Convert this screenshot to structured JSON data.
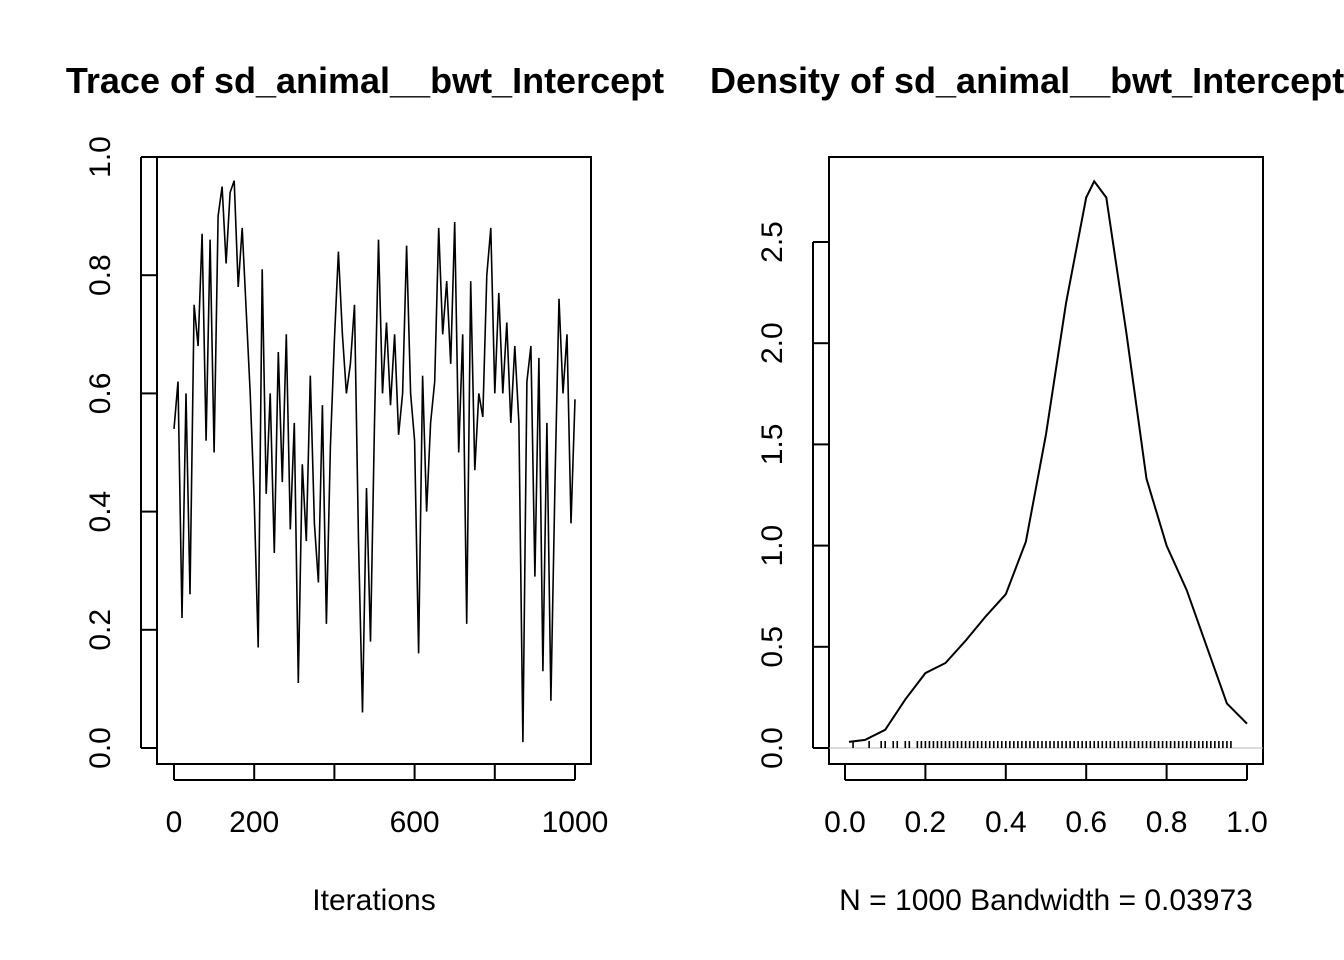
{
  "chart_data": [
    {
      "type": "line",
      "title": "Trace of sd_animal__bwt_Intercept",
      "xlabel": "Iterations",
      "ylabel": "",
      "xlim": [
        0,
        1000
      ],
      "ylim": [
        0.0,
        1.0
      ],
      "x_ticks": [
        "0",
        "200",
        "600",
        "1000"
      ],
      "x_tick_values": [
        0,
        200,
        400,
        600,
        800,
        1000
      ],
      "y_ticks": [
        "0.0",
        "0.2",
        "0.4",
        "0.6",
        "0.8",
        "1.0"
      ],
      "grid": false,
      "series": [
        {
          "x": [
            0,
            10,
            20,
            30,
            40,
            50,
            60,
            70,
            80,
            90,
            100,
            110,
            120,
            130,
            140,
            150,
            160,
            170,
            180,
            190,
            200,
            210,
            220,
            230,
            240,
            250,
            260,
            270,
            280,
            290,
            300,
            310,
            320,
            330,
            340,
            350,
            360,
            370,
            380,
            390,
            400,
            410,
            420,
            430,
            440,
            450,
            460,
            470,
            480,
            490,
            500,
            510,
            520,
            530,
            540,
            550,
            560,
            570,
            580,
            590,
            600,
            610,
            620,
            630,
            640,
            650,
            660,
            670,
            680,
            690,
            700,
            710,
            720,
            730,
            740,
            750,
            760,
            770,
            780,
            790,
            800,
            810,
            820,
            830,
            840,
            850,
            860,
            870,
            880,
            890,
            900,
            910,
            920,
            930,
            940,
            950,
            960,
            970,
            980,
            990,
            1000
          ],
          "values": [
            0.54,
            0.62,
            0.22,
            0.6,
            0.26,
            0.75,
            0.68,
            0.87,
            0.52,
            0.86,
            0.5,
            0.9,
            0.95,
            0.82,
            0.94,
            0.96,
            0.78,
            0.88,
            0.74,
            0.6,
            0.42,
            0.17,
            0.81,
            0.43,
            0.6,
            0.33,
            0.67,
            0.45,
            0.7,
            0.37,
            0.55,
            0.11,
            0.48,
            0.35,
            0.63,
            0.38,
            0.28,
            0.58,
            0.21,
            0.51,
            0.69,
            0.84,
            0.7,
            0.6,
            0.65,
            0.75,
            0.35,
            0.06,
            0.44,
            0.18,
            0.55,
            0.86,
            0.6,
            0.72,
            0.58,
            0.7,
            0.53,
            0.6,
            0.85,
            0.6,
            0.52,
            0.16,
            0.63,
            0.4,
            0.55,
            0.62,
            0.88,
            0.7,
            0.79,
            0.65,
            0.89,
            0.5,
            0.7,
            0.21,
            0.79,
            0.47,
            0.6,
            0.56,
            0.8,
            0.88,
            0.6,
            0.77,
            0.6,
            0.72,
            0.55,
            0.68,
            0.55,
            0.01,
            0.62,
            0.68,
            0.29,
            0.66,
            0.13,
            0.55,
            0.08,
            0.45,
            0.76,
            0.6,
            0.7,
            0.38,
            0.59
          ]
        }
      ]
    },
    {
      "type": "line",
      "title": "Density of sd_animal__bwt_Intercept",
      "xlabel": "N = 1000   Bandwidth = 0.03973",
      "ylabel": "",
      "xlim": [
        0.0,
        1.0
      ],
      "ylim": [
        0.0,
        2.8
      ],
      "x_ticks": [
        "0.0",
        "0.2",
        "0.4",
        "0.6",
        "0.8",
        "1.0"
      ],
      "y_ticks": [
        "0.0",
        "0.5",
        "1.0",
        "1.5",
        "2.0",
        "2.5"
      ],
      "grid": false,
      "series": [
        {
          "x": [
            0.01,
            0.05,
            0.1,
            0.15,
            0.2,
            0.25,
            0.3,
            0.35,
            0.4,
            0.45,
            0.5,
            0.55,
            0.6,
            0.62,
            0.65,
            0.7,
            0.75,
            0.8,
            0.85,
            0.9,
            0.95,
            1.0
          ],
          "values": [
            0.03,
            0.04,
            0.09,
            0.24,
            0.37,
            0.42,
            0.53,
            0.65,
            0.76,
            1.02,
            1.55,
            2.2,
            2.72,
            2.8,
            2.72,
            2.05,
            1.33,
            1.0,
            0.78,
            0.5,
            0.22,
            0.12
          ]
        }
      ],
      "rug": [
        0.02,
        0.06,
        0.09,
        0.1,
        0.12,
        0.13,
        0.15,
        0.16,
        0.18,
        0.19,
        0.2,
        0.21,
        0.22,
        0.23,
        0.24,
        0.25,
        0.26,
        0.27,
        0.28,
        0.29,
        0.3,
        0.31,
        0.32,
        0.33,
        0.34,
        0.35,
        0.36,
        0.37,
        0.38,
        0.39,
        0.4,
        0.41,
        0.42,
        0.43,
        0.44,
        0.45,
        0.46,
        0.47,
        0.48,
        0.49,
        0.5,
        0.51,
        0.52,
        0.53,
        0.54,
        0.55,
        0.56,
        0.57,
        0.58,
        0.59,
        0.6,
        0.61,
        0.62,
        0.63,
        0.64,
        0.65,
        0.66,
        0.67,
        0.68,
        0.69,
        0.7,
        0.71,
        0.72,
        0.73,
        0.74,
        0.75,
        0.76,
        0.77,
        0.78,
        0.79,
        0.8,
        0.81,
        0.82,
        0.83,
        0.84,
        0.85,
        0.86,
        0.87,
        0.88,
        0.89,
        0.9,
        0.91,
        0.92,
        0.93,
        0.94,
        0.95,
        0.96
      ]
    }
  ]
}
